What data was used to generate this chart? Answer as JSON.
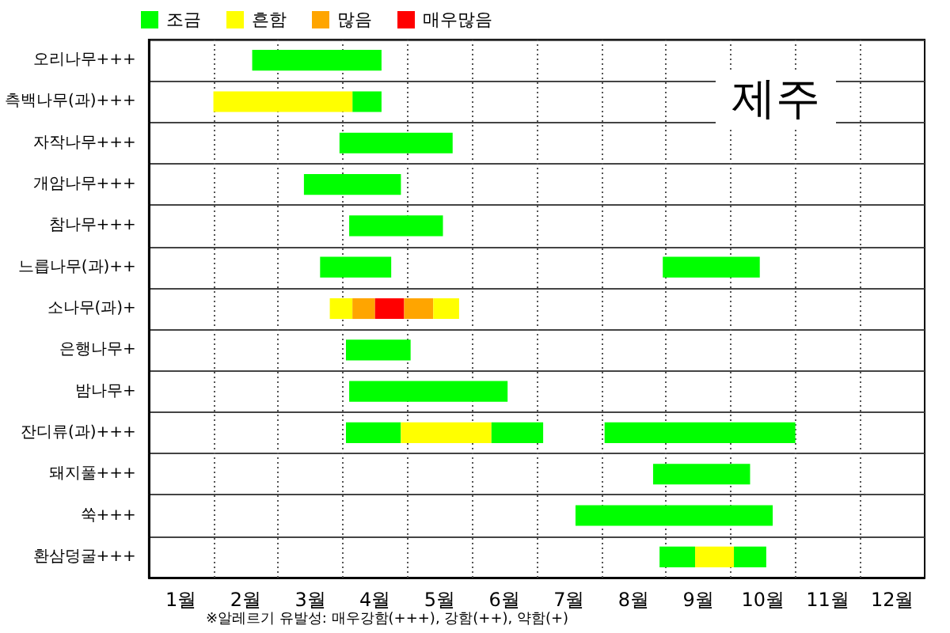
{
  "chart_data": {
    "type": "bar",
    "orientation": "horizontal",
    "title": "제주",
    "categories": [
      "오리나무+++",
      "측백나무(과)+++",
      "자작나무+++",
      "개암나무+++",
      "참나무+++",
      "느릅나무(과)++",
      "소나무(과)+",
      "은행나무+",
      "밤나무+",
      "잔디류(과)+++",
      "돼지풀+++",
      "쑥+++",
      "환삼덩굴+++"
    ],
    "series": [
      {
        "name": "조금",
        "color": "#00ff00",
        "base": [
          2.6,
          4.15,
          3.95,
          3.4,
          4.1,
          3.65,
          null,
          4.05,
          4.1,
          4.05,
          8.8,
          7.6,
          8.9
        ],
        "values": [
          2.0,
          0.45,
          1.75,
          1.5,
          1.45,
          1.1,
          null,
          1.0,
          2.45,
          0.85,
          1.5,
          3.05,
          0.55
        ]
      },
      {
        "name": "흔함",
        "color": "#ffff00",
        "base": [
          null,
          2.0,
          null,
          null,
          null,
          null,
          3.8,
          null,
          null,
          4.9,
          null,
          null,
          9.45
        ],
        "values": [
          null,
          2.15,
          null,
          null,
          null,
          null,
          0.35,
          null,
          null,
          1.4,
          null,
          null,
          0.6
        ]
      },
      {
        "name": "많음",
        "color": "#ffa500",
        "base": [
          null,
          null,
          null,
          null,
          null,
          null,
          4.15,
          null,
          null,
          null,
          null,
          null,
          null
        ],
        "values": [
          null,
          null,
          null,
          null,
          null,
          null,
          0.35,
          null,
          null,
          null,
          null,
          null,
          null
        ]
      },
      {
        "name": "매우많음",
        "color": "#ff0000",
        "base": [
          null,
          null,
          null,
          null,
          null,
          null,
          4.5,
          null,
          null,
          null,
          null,
          null,
          null
        ],
        "values": [
          null,
          null,
          null,
          null,
          null,
          null,
          0.45,
          null,
          null,
          null,
          null,
          null,
          null
        ]
      },
      {
        "color": "#00ff00",
        "base": [
          null,
          null,
          null,
          null,
          null,
          8.95,
          null,
          null,
          null,
          6.3,
          null,
          null,
          10.05
        ],
        "values": [
          null,
          null,
          null,
          null,
          null,
          1.5,
          null,
          null,
          null,
          0.8,
          null,
          null,
          0.5
        ]
      },
      {
        "color": "#00ff00",
        "base": [
          null,
          null,
          null,
          null,
          null,
          null,
          null,
          null,
          null,
          8.05,
          null,
          null,
          null
        ],
        "values": [
          null,
          null,
          null,
          null,
          null,
          null,
          null,
          null,
          null,
          2.95,
          null,
          null,
          null
        ]
      },
      {
        "color": "#ffa500",
        "base": [
          null,
          null,
          null,
          null,
          null,
          null,
          4.95,
          null,
          null,
          null,
          null,
          null,
          null
        ],
        "values": [
          null,
          null,
          null,
          null,
          null,
          null,
          0.45,
          null,
          null,
          null,
          null,
          null,
          null
        ]
      },
      {
        "color": "#ffff00",
        "base": [
          null,
          null,
          null,
          null,
          null,
          null,
          5.4,
          null,
          null,
          null,
          null,
          null,
          null
        ],
        "values": [
          null,
          null,
          null,
          null,
          null,
          null,
          0.4,
          null,
          null,
          null,
          null,
          null,
          null
        ]
      }
    ],
    "xlim": [
      1,
      13
    ],
    "xticks": [
      {
        "value": 1.5,
        "label": "1월"
      },
      {
        "value": 2,
        "label": null
      },
      {
        "value": 2.5,
        "label": "2월"
      },
      {
        "value": 3,
        "label": null
      },
      {
        "value": 3.5,
        "label": "3월"
      },
      {
        "value": 4,
        "label": null
      },
      {
        "value": 4.5,
        "label": "4월"
      },
      {
        "value": 5,
        "label": null
      },
      {
        "value": 5.5,
        "label": "5월"
      },
      {
        "value": 6,
        "label": null
      },
      {
        "value": 6.5,
        "label": "6월"
      },
      {
        "value": 7,
        "label": null
      },
      {
        "value": 7.5,
        "label": "7월"
      },
      {
        "value": 8,
        "label": null
      },
      {
        "value": 8.5,
        "label": "8월"
      },
      {
        "value": 9,
        "label": null
      },
      {
        "value": 9.5,
        "label": "9월"
      },
      {
        "value": 10,
        "label": null
      },
      {
        "value": 10.5,
        "label": "10월"
      },
      {
        "value": 11,
        "label": null
      },
      {
        "value": 11.5,
        "label": "11월"
      },
      {
        "value": 12,
        "label": null
      },
      {
        "value": 12.5,
        "label": "12월"
      }
    ],
    "grid": true,
    "legend": "top left",
    "annotations": [
      "※알레르기 유발성: 매우강함(+++), 강함(++), 약함(+)"
    ]
  }
}
